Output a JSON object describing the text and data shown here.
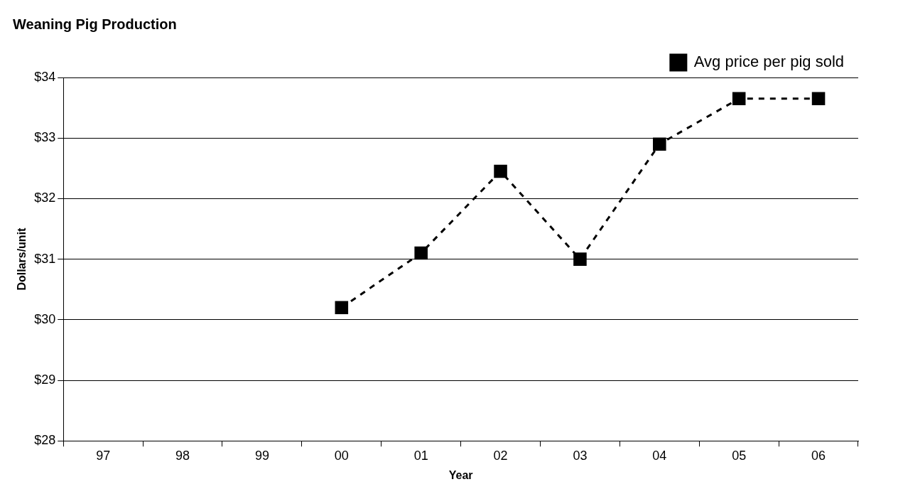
{
  "chart_data": {
    "type": "line",
    "title": "Weaning Pig Production",
    "xlabel": "Year",
    "ylabel": "Dollars/unit",
    "categories": [
      "97",
      "98",
      "99",
      "00",
      "01",
      "02",
      "03",
      "04",
      "05",
      "06"
    ],
    "series": [
      {
        "name": "Avg price per pig sold",
        "color": "#000000",
        "values": [
          null,
          null,
          null,
          30.2,
          31.1,
          32.45,
          31.0,
          32.9,
          33.65,
          33.65
        ]
      }
    ],
    "ylim": [
      28,
      34
    ],
    "yticks": [
      {
        "value": 28,
        "label": "$28"
      },
      {
        "value": 29,
        "label": "$29"
      },
      {
        "value": 30,
        "label": "$30"
      },
      {
        "value": 31,
        "label": "$31"
      },
      {
        "value": 32,
        "label": "$32"
      },
      {
        "value": 33,
        "label": "$33"
      },
      {
        "value": 34,
        "label": "$34"
      }
    ],
    "grid": "y",
    "legend": "top right",
    "marker": "square",
    "line_style": "dashed"
  }
}
